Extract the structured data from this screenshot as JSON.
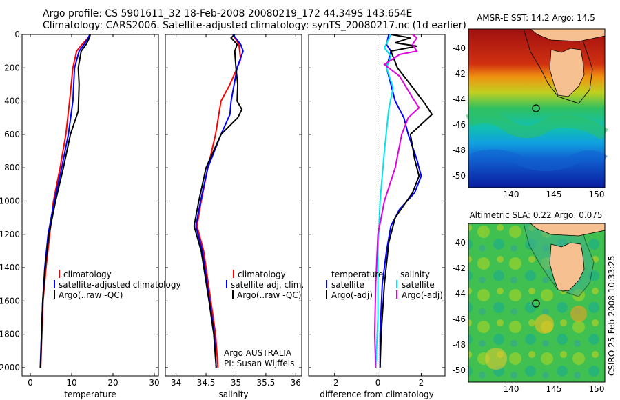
{
  "header": {
    "line1": "Argo profile: CS 5901611_32 18-Feb-2008 20080219_172 44.349S 143.654E",
    "line2": "Climatology: CARS2006. Satellite-adjusted climatology: synTS_20080217.nc (1d earlier)"
  },
  "signature": "CSIRO 25-Feb-2008 10:33:25",
  "colors": {
    "climatology": "#ff0000",
    "satellite": "#0000ff",
    "argo": "#000000",
    "sat_salinity": "#00e5ee",
    "argo_salinity_diff": "#e000e0"
  },
  "chart_data": [
    {
      "type": "line",
      "id": "temperature",
      "xlabel": "temperature",
      "ylabel": "",
      "xlim": [
        -2,
        31
      ],
      "ylim": [
        2050,
        0
      ],
      "xticks": [
        0,
        10,
        20,
        30
      ],
      "yticks": [
        0,
        200,
        400,
        600,
        800,
        1000,
        1200,
        1400,
        1600,
        1800,
        2000
      ],
      "legend": [
        "climatology",
        "satellite-adjusted climatology",
        "Argo(..raw -QC)"
      ],
      "series": [
        {
          "name": "climatology",
          "color": "red",
          "points": [
            [
              14.5,
              0
            ],
            [
              14,
              20
            ],
            [
              12.5,
              60
            ],
            [
              11.2,
              100
            ],
            [
              10.3,
              200
            ],
            [
              9.5,
              400
            ],
            [
              8.6,
              600
            ],
            [
              7.2,
              800
            ],
            [
              5.6,
              1000
            ],
            [
              4.7,
              1200
            ],
            [
              3.8,
              1400
            ],
            [
              3.1,
              1600
            ],
            [
              2.8,
              1800
            ],
            [
              2.5,
              2000
            ]
          ]
        },
        {
          "name": "satellite-adjusted climatology",
          "color": "blue",
          "points": [
            [
              14.4,
              0
            ],
            [
              14,
              20
            ],
            [
              13,
              60
            ],
            [
              11.8,
              100
            ],
            [
              10.7,
              200
            ],
            [
              10.3,
              400
            ],
            [
              9.2,
              600
            ],
            [
              7.6,
              800
            ],
            [
              5.8,
              1000
            ],
            [
              4.3,
              1200
            ],
            [
              3.5,
              1400
            ],
            [
              3,
              1600
            ],
            [
              2.7,
              1800
            ],
            [
              2.4,
              2000
            ]
          ]
        },
        {
          "name": "Argo(..raw -QC)",
          "color": "black",
          "points": [
            [
              14.5,
              0
            ],
            [
              14.3,
              20
            ],
            [
              13.5,
              60
            ],
            [
              12.3,
              100
            ],
            [
              11.6,
              200
            ],
            [
              11.8,
              300
            ],
            [
              11.6,
              460
            ],
            [
              9.7,
              600
            ],
            [
              8,
              800
            ],
            [
              6.1,
              1000
            ],
            [
              4.5,
              1200
            ],
            [
              3.6,
              1400
            ],
            [
              3,
              1600
            ],
            [
              2.7,
              1800
            ],
            [
              2.5,
              2000
            ]
          ]
        }
      ]
    },
    {
      "type": "line",
      "id": "salinity",
      "xlabel": "salinity",
      "ylabel": "",
      "xlim": [
        33.82,
        36.1
      ],
      "ylim": [
        2050,
        0
      ],
      "xticks": [
        34,
        34.5,
        35,
        35.5,
        36
      ],
      "legend": [
        "climatology",
        "satellite adj. clim.",
        "Argo(..raw -QC)"
      ],
      "annotation": [
        "Argo AUSTRALIA",
        "PI: Susan Wijffels"
      ],
      "series": [
        {
          "name": "climatology",
          "color": "red",
          "points": [
            [
              34.95,
              0
            ],
            [
              35.05,
              60
            ],
            [
              35.08,
              150
            ],
            [
              34.9,
              300
            ],
            [
              34.75,
              400
            ],
            [
              34.66,
              600
            ],
            [
              34.53,
              800
            ],
            [
              34.42,
              1000
            ],
            [
              34.35,
              1150
            ],
            [
              34.46,
              1300
            ],
            [
              34.58,
              1600
            ],
            [
              34.66,
              1800
            ],
            [
              34.7,
              2000
            ]
          ]
        },
        {
          "name": "satellite adj. clim.",
          "color": "blue",
          "points": [
            [
              34.95,
              0
            ],
            [
              35.08,
              60
            ],
            [
              35.12,
              100
            ],
            [
              35.02,
              200
            ],
            [
              34.92,
              400
            ],
            [
              34.9,
              480
            ],
            [
              34.75,
              600
            ],
            [
              34.53,
              800
            ],
            [
              34.41,
              1000
            ],
            [
              34.33,
              1150
            ],
            [
              34.44,
              1300
            ],
            [
              34.56,
              1600
            ],
            [
              34.64,
              1800
            ],
            [
              34.67,
              2000
            ]
          ]
        },
        {
          "name": "Argo(..raw -QC)",
          "color": "black",
          "points": [
            [
              34.98,
              0
            ],
            [
              34.92,
              20
            ],
            [
              35.02,
              60
            ],
            [
              34.98,
              100
            ],
            [
              35,
              200
            ],
            [
              35.03,
              300
            ],
            [
              35.02,
              400
            ],
            [
              35.1,
              450
            ],
            [
              35.03,
              500
            ],
            [
              34.75,
              600
            ],
            [
              34.5,
              800
            ],
            [
              34.38,
              1000
            ],
            [
              34.3,
              1150
            ],
            [
              34.42,
              1300
            ],
            [
              34.55,
              1600
            ],
            [
              34.63,
              1800
            ],
            [
              34.67,
              2000
            ]
          ]
        }
      ]
    },
    {
      "type": "line",
      "id": "difference",
      "xlabel": "difference from climatology",
      "ylabel": "",
      "xlim": [
        -3.2,
        3.1
      ],
      "ylim": [
        2050,
        0
      ],
      "xticks": [
        -2,
        0,
        2
      ],
      "legend_temperature": [
        "satellite",
        "Argo(-adj)"
      ],
      "legend_salinity": [
        "satellite",
        "Argo(-adj)"
      ],
      "legend_headers": [
        "temperature",
        "salinity"
      ],
      "series": [
        {
          "name": "temperature satellite",
          "color": "blue",
          "points": [
            [
              0.5,
              0
            ],
            [
              0.4,
              60
            ],
            [
              0.6,
              100
            ],
            [
              0.4,
              200
            ],
            [
              0.8,
              400
            ],
            [
              1.2,
              500
            ],
            [
              1.4,
              600
            ],
            [
              1.8,
              750
            ],
            [
              2,
              850
            ],
            [
              1.7,
              950
            ],
            [
              1,
              1050
            ],
            [
              0.6,
              1150
            ],
            [
              0.4,
              1300
            ],
            [
              0.2,
              1500
            ],
            [
              0.1,
              1800
            ],
            [
              0.1,
              2000
            ]
          ]
        },
        {
          "name": "temperature Argo(-adj)",
          "color": "black",
          "points": [
            [
              0.6,
              0
            ],
            [
              1.5,
              20
            ],
            [
              0.8,
              50
            ],
            [
              1.8,
              70
            ],
            [
              0.6,
              100
            ],
            [
              0.9,
              200
            ],
            [
              1.5,
              300
            ],
            [
              2.2,
              420
            ],
            [
              2.5,
              480
            ],
            [
              1.5,
              600
            ],
            [
              1.7,
              750
            ],
            [
              1.9,
              850
            ],
            [
              1.6,
              950
            ],
            [
              0.8,
              1100
            ],
            [
              0.5,
              1250
            ],
            [
              0.3,
              1500
            ],
            [
              0.15,
              1800
            ],
            [
              0.1,
              2000
            ]
          ]
        },
        {
          "name": "salinity satellite",
          "color": "cyan",
          "points": [
            [
              0.6,
              0
            ],
            [
              0.3,
              80
            ],
            [
              0.6,
              130
            ],
            [
              0.4,
              200
            ],
            [
              0.7,
              320
            ],
            [
              0.5,
              450
            ],
            [
              0.3,
              700
            ],
            [
              0.1,
              1000
            ],
            [
              0,
              1300
            ],
            [
              0,
              1700
            ],
            [
              -0.1,
              2000
            ]
          ]
        },
        {
          "name": "salinity Argo(-adj)",
          "color": "magenta",
          "points": [
            [
              1.6,
              0
            ],
            [
              1.8,
              20
            ],
            [
              1.6,
              60
            ],
            [
              1.8,
              100
            ],
            [
              1,
              120
            ],
            [
              0.3,
              180
            ],
            [
              1,
              250
            ],
            [
              1.6,
              380
            ],
            [
              1.9,
              440
            ],
            [
              1.4,
              500
            ],
            [
              1.1,
              600
            ],
            [
              0.8,
              800
            ],
            [
              0.3,
              1000
            ],
            [
              0,
              1200
            ],
            [
              -0.1,
              1500
            ],
            [
              -0.15,
              1800
            ],
            [
              -0.1,
              2000
            ]
          ]
        }
      ]
    }
  ],
  "maps": {
    "sst": {
      "title": "AMSR-E SST: 14.2 Argo: 14.5",
      "yticks": [
        "-40",
        "-42",
        "-44",
        "-46",
        "-48",
        "-50"
      ],
      "xticks": [
        "140",
        "145",
        "150"
      ]
    },
    "sla": {
      "title": "Altimetric SLA: 0.22 Argo: 0.075",
      "yticks": [
        "-40",
        "-42",
        "-44",
        "-46",
        "-48",
        "-50"
      ],
      "xticks": [
        "140",
        "145",
        "150"
      ]
    }
  }
}
